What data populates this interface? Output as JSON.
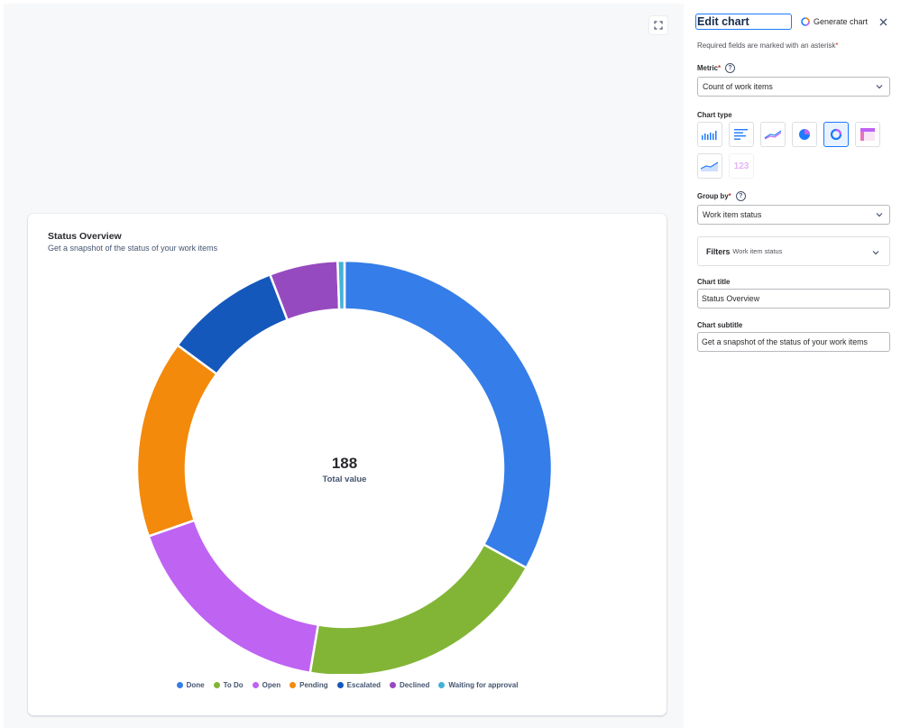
{
  "chart_card": {
    "title": "Status Overview",
    "subtitle": "Get a snapshot of the status of your work items",
    "total_value": "188",
    "total_label": "Total value"
  },
  "chart_data": {
    "type": "pie",
    "donut": true,
    "title": "Status Overview",
    "subtitle": "Get a snapshot of the status of your work items",
    "center_value": 188,
    "center_label": "Total value",
    "categories": [
      "Done",
      "To Do",
      "Open",
      "Pending",
      "Escalated",
      "Declined",
      "Waiting for approval"
    ],
    "values": [
      62,
      37,
      32,
      29,
      17,
      10,
      1
    ],
    "colors": [
      "#357de8",
      "#82b536",
      "#bf63f3",
      "#f38a0b",
      "#1558bc",
      "#964ac0",
      "#42b2d7"
    ],
    "legend": "bottom"
  },
  "panel": {
    "title": "Edit chart",
    "generate_label": "Generate chart",
    "required_note": "Required fields are marked with an asterisk",
    "asterisk": "*",
    "metric_label": "Metric",
    "metric_value": "Count of work items",
    "chart_type_label": "Chart type",
    "chart_types": [
      "bar-chart-icon",
      "horizontal-bar-chart-icon",
      "line-chart-icon",
      "pie-chart-icon",
      "donut-chart-icon",
      "heatmap-icon",
      "area-chart-icon",
      "number-icon"
    ],
    "number_tile_text": "123",
    "group_by_label": "Group by",
    "group_by_value": "Work item status",
    "filters_label": "Filters",
    "filters_sub": "Work item status",
    "chart_title_label": "Chart title",
    "chart_title_value": "Status Overview",
    "chart_subtitle_label": "Chart subtitle",
    "chart_subtitle_value": "Get a snapshot of the status of your work items"
  }
}
